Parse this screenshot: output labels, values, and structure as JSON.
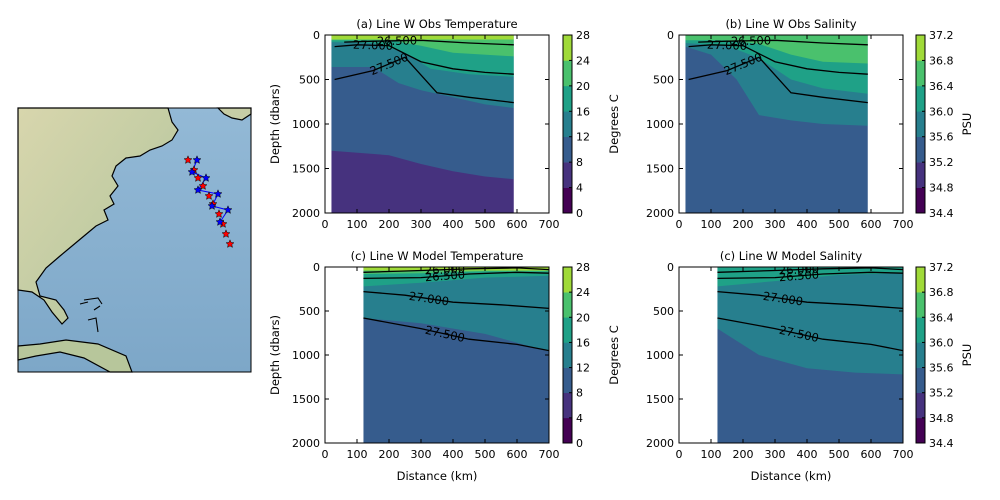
{
  "figure": {
    "colors": {
      "viridis": [
        "#440154",
        "#46327e",
        "#365c8d",
        "#277f8e",
        "#1fa187",
        "#4ac16d",
        "#a0da39",
        "#fde725"
      ]
    }
  },
  "map": {
    "track_colors": {
      "observation_stars": "#ff0000",
      "model_stars": "#0000ff",
      "line": "#0000ff"
    }
  },
  "chart_data": [
    {
      "type": "heatmap",
      "title": "(a) Line W Obs Temperature",
      "xlabel": "",
      "ylabel": "Depth (dbars)",
      "xlim": [
        0,
        700
      ],
      "ylim": [
        2000,
        0
      ],
      "xticks": [
        "0",
        "100",
        "200",
        "300",
        "400",
        "500",
        "600",
        "700"
      ],
      "yticks": [
        "0",
        "500",
        "1000",
        "1500",
        "2000"
      ],
      "colorbar": {
        "label": "Degrees C",
        "levels": [
          0,
          4,
          8,
          12,
          16,
          20,
          24,
          28
        ],
        "ticks": [
          "0",
          "4",
          "8",
          "12",
          "16",
          "20",
          "24",
          "28"
        ]
      },
      "contour_labels": [
        "27.000",
        "26.500",
        "27.500"
      ],
      "data_extent_km": [
        20,
        590
      ],
      "bands": [
        {
          "level_lower": 24,
          "boundary": [
            [
              20,
              50
            ],
            [
              590,
              50
            ]
          ]
        },
        {
          "level_lower": 20,
          "boundary": [
            [
              20,
              60
            ],
            [
              200,
              60
            ],
            [
              300,
              120
            ],
            [
              400,
              200
            ],
            [
              590,
              240
            ]
          ]
        },
        {
          "level_lower": 16,
          "boundary": [
            [
              20,
              80
            ],
            [
              150,
              90
            ],
            [
              250,
              200
            ],
            [
              330,
              380
            ],
            [
              450,
              440
            ],
            [
              590,
              470
            ]
          ]
        },
        {
          "level_lower": 12,
          "boundary": [
            [
              20,
              360
            ],
            [
              150,
              360
            ],
            [
              230,
              540
            ],
            [
              300,
              620
            ],
            [
              400,
              700
            ],
            [
              500,
              780
            ],
            [
              590,
              820
            ]
          ]
        },
        {
          "level_lower": 8,
          "boundary": [
            [
              20,
              1300
            ],
            [
              200,
              1350
            ],
            [
              300,
              1450
            ],
            [
              400,
              1530
            ],
            [
              500,
              1590
            ],
            [
              590,
              1620
            ]
          ]
        },
        {
          "level_lower": 4,
          "boundary": [
            [
              20,
              2000
            ],
            [
              590,
              2000
            ]
          ]
        }
      ],
      "contours": [
        {
          "label": "26.500",
          "points": [
            [
              60,
              80
            ],
            [
              150,
              70
            ],
            [
              300,
              60
            ],
            [
              450,
              90
            ],
            [
              590,
              110
            ]
          ]
        },
        {
          "label": "27.000",
          "points": [
            [
              30,
              130
            ],
            [
              100,
              110
            ],
            [
              200,
              120
            ],
            [
              300,
              300
            ],
            [
              400,
              380
            ],
            [
              500,
              420
            ],
            [
              590,
              440
            ]
          ]
        },
        {
          "label": "27.500",
          "points": [
            [
              30,
              500
            ],
            [
              150,
              400
            ],
            [
              250,
              250
            ],
            [
              350,
              650
            ],
            [
              450,
              700
            ],
            [
              590,
              760
            ]
          ]
        }
      ]
    },
    {
      "type": "heatmap",
      "title": "(b) Line W Obs Salinity",
      "xlabel": "",
      "ylabel": "",
      "xlim": [
        0,
        700
      ],
      "ylim": [
        2000,
        0
      ],
      "xticks": [
        "0",
        "100",
        "200",
        "300",
        "400",
        "500",
        "600",
        "700"
      ],
      "yticks": [
        "0",
        "500",
        "1000",
        "1500",
        "2000"
      ],
      "colorbar": {
        "label": "PSU",
        "levels": [
          34.4,
          34.8,
          35.2,
          35.6,
          36.0,
          36.4,
          36.8,
          37.2
        ],
        "ticks": [
          "34.4",
          "34.8",
          "35.2",
          "35.6",
          "36.0",
          "36.4",
          "36.8",
          "37.2"
        ]
      },
      "contour_labels": [
        "27.000",
        "26.500",
        "27.500"
      ],
      "data_extent_km": [
        20,
        590
      ],
      "bands": [
        {
          "level_lower": 36.4,
          "boundary": [
            [
              20,
              60
            ],
            [
              150,
              60
            ],
            [
              250,
              100
            ],
            [
              350,
              220
            ],
            [
              450,
              300
            ],
            [
              590,
              320
            ]
          ]
        },
        {
          "level_lower": 36.0,
          "boundary": [
            [
              20,
              90
            ],
            [
              150,
              120
            ],
            [
              250,
              260
            ],
            [
              350,
              500
            ],
            [
              450,
              600
            ],
            [
              590,
              660
            ]
          ]
        },
        {
          "level_lower": 35.6,
          "boundary": [
            [
              20,
              130
            ],
            [
              100,
              220
            ],
            [
              180,
              500
            ],
            [
              250,
              900
            ],
            [
              350,
              960
            ],
            [
              450,
              1000
            ],
            [
              590,
              1020
            ]
          ]
        },
        {
          "level_lower": 35.2,
          "boundary": [
            [
              20,
              2000
            ],
            [
              590,
              2000
            ]
          ]
        }
      ],
      "contours": [
        {
          "label": "26.500",
          "points": [
            [
              60,
              80
            ],
            [
              150,
              70
            ],
            [
              300,
              60
            ],
            [
              450,
              90
            ],
            [
              590,
              110
            ]
          ]
        },
        {
          "label": "27.000",
          "points": [
            [
              30,
              130
            ],
            [
              100,
              110
            ],
            [
              200,
              120
            ],
            [
              300,
              300
            ],
            [
              400,
              380
            ],
            [
              500,
              420
            ],
            [
              590,
              440
            ]
          ]
        },
        {
          "label": "27.500",
          "points": [
            [
              30,
              500
            ],
            [
              150,
              400
            ],
            [
              250,
              250
            ],
            [
              350,
              650
            ],
            [
              450,
              700
            ],
            [
              590,
              760
            ]
          ]
        }
      ]
    },
    {
      "type": "heatmap",
      "title": "(c) Line W Model Temperature",
      "xlabel": "Distance (km)",
      "ylabel": "Depth (dbars)",
      "xlim": [
        0,
        700
      ],
      "ylim": [
        2000,
        0
      ],
      "xticks": [
        "0",
        "100",
        "200",
        "300",
        "400",
        "500",
        "600",
        "700"
      ],
      "yticks": [
        "0",
        "500",
        "1000",
        "1500",
        "2000"
      ],
      "colorbar": {
        "label": "Degrees C",
        "levels": [
          0,
          4,
          8,
          12,
          16,
          20,
          24,
          28
        ],
        "ticks": [
          "0",
          "4",
          "8",
          "12",
          "16",
          "20",
          "24",
          "28"
        ]
      },
      "contour_labels": [
        "26.000",
        "26.500",
        "27.000",
        "27.500"
      ],
      "data_extent_km": [
        120,
        700
      ],
      "bands": [
        {
          "level_lower": 24,
          "boundary": [
            [
              120,
              40
            ],
            [
              700,
              40
            ]
          ]
        },
        {
          "level_lower": 20,
          "boundary": [
            [
              120,
              80
            ],
            [
              300,
              70
            ],
            [
              500,
              50
            ],
            [
              700,
              50
            ]
          ]
        },
        {
          "level_lower": 16,
          "boundary": [
            [
              120,
              220
            ],
            [
              300,
              180
            ],
            [
              500,
              120
            ],
            [
              700,
              100
            ]
          ]
        },
        {
          "level_lower": 12,
          "boundary": [
            [
              120,
              580
            ],
            [
              300,
              640
            ],
            [
              500,
              760
            ],
            [
              700,
              960
            ]
          ]
        },
        {
          "level_lower": 8,
          "boundary": [
            [
              120,
              2000
            ],
            [
              700,
              2000
            ]
          ]
        }
      ],
      "contours": [
        {
          "label": "26.000",
          "points": [
            [
              120,
              60
            ],
            [
              300,
              40
            ],
            [
              450,
              20
            ],
            [
              600,
              10
            ],
            [
              700,
              30
            ]
          ]
        },
        {
          "label": "26.500",
          "points": [
            [
              120,
              130
            ],
            [
              300,
              120
            ],
            [
              450,
              80
            ],
            [
              600,
              60
            ],
            [
              700,
              70
            ]
          ]
        },
        {
          "label": "27.000",
          "points": [
            [
              120,
              280
            ],
            [
              250,
              320
            ],
            [
              400,
              400
            ],
            [
              550,
              430
            ],
            [
              700,
              470
            ]
          ]
        },
        {
          "label": "27.500",
          "points": [
            [
              120,
              580
            ],
            [
              300,
              700
            ],
            [
              450,
              820
            ],
            [
              600,
              880
            ],
            [
              700,
              950
            ]
          ]
        }
      ]
    },
    {
      "type": "heatmap",
      "title": "(c) Line W Model Salinity",
      "xlabel": "Distance (km)",
      "ylabel": "",
      "xlim": [
        0,
        700
      ],
      "ylim": [
        2000,
        0
      ],
      "xticks": [
        "0",
        "100",
        "200",
        "300",
        "400",
        "500",
        "600",
        "700"
      ],
      "yticks": [
        "0",
        "500",
        "1000",
        "1500",
        "2000"
      ],
      "colorbar": {
        "label": "PSU",
        "levels": [
          34.4,
          34.8,
          35.2,
          35.6,
          36.0,
          36.4,
          36.8,
          37.2
        ],
        "ticks": [
          "34.4",
          "34.8",
          "35.2",
          "35.6",
          "36.0",
          "36.4",
          "36.8",
          "37.2"
        ]
      },
      "contour_labels": [
        "26.000",
        "26.500",
        "27.000",
        "27.500"
      ],
      "data_extent_km": [
        120,
        700
      ],
      "bands": [
        {
          "level_lower": 36.0,
          "boundary": [
            [
              120,
              220
            ],
            [
              300,
              160
            ],
            [
              500,
              90
            ],
            [
              700,
              70
            ]
          ]
        },
        {
          "level_lower": 35.6,
          "boundary": [
            [
              120,
              700
            ],
            [
              250,
              1000
            ],
            [
              400,
              1150
            ],
            [
              550,
              1200
            ],
            [
              700,
              1220
            ]
          ]
        },
        {
          "level_lower": 35.2,
          "boundary": [
            [
              120,
              2000
            ],
            [
              700,
              2000
            ]
          ]
        }
      ],
      "contours": [
        {
          "label": "26.000",
          "points": [
            [
              120,
              60
            ],
            [
              300,
              40
            ],
            [
              450,
              20
            ],
            [
              600,
              10
            ],
            [
              700,
              30
            ]
          ]
        },
        {
          "label": "26.500",
          "points": [
            [
              120,
              130
            ],
            [
              300,
              120
            ],
            [
              450,
              80
            ],
            [
              600,
              60
            ],
            [
              700,
              70
            ]
          ]
        },
        {
          "label": "27.000",
          "points": [
            [
              120,
              280
            ],
            [
              250,
              320
            ],
            [
              400,
              400
            ],
            [
              550,
              430
            ],
            [
              700,
              470
            ]
          ]
        },
        {
          "label": "27.500",
          "points": [
            [
              120,
              580
            ],
            [
              300,
              700
            ],
            [
              450,
              820
            ],
            [
              600,
              880
            ],
            [
              700,
              950
            ]
          ]
        }
      ]
    }
  ]
}
